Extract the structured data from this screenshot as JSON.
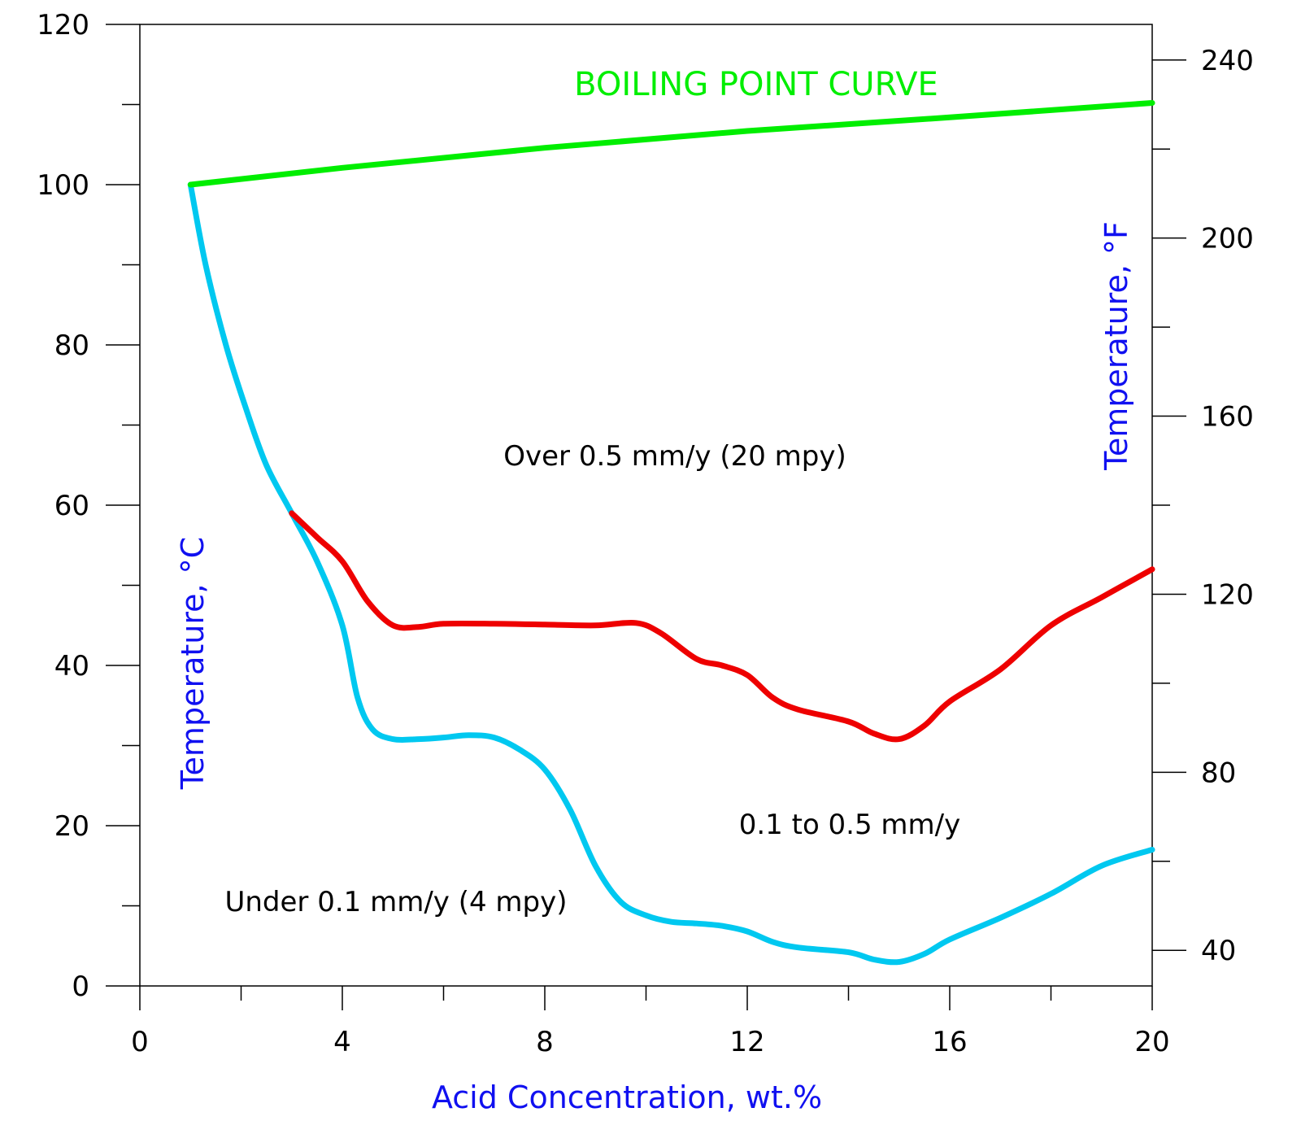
{
  "chart_data": {
    "type": "line",
    "xlabel": "Acid Concentration, wt.%",
    "ylabel": "Temperature, °C",
    "y2label": "Temperature, °F",
    "xlim": [
      0,
      20
    ],
    "ylim": [
      0,
      120
    ],
    "y2lim": [
      32,
      248
    ],
    "x_ticks": [
      0,
      4,
      8,
      12,
      16,
      20
    ],
    "x_minor_ticks": [
      2,
      6,
      10,
      14,
      18
    ],
    "y_ticks": [
      0,
      20,
      40,
      60,
      80,
      100,
      120
    ],
    "y_tick_labels": [
      "0",
      "20",
      "40",
      "60",
      "80",
      "100",
      "120"
    ],
    "y_minor_ticks": [
      10,
      30,
      50,
      70,
      90,
      110
    ],
    "y2_ticks": [
      40,
      80,
      120,
      160,
      200,
      240
    ],
    "y2_minor_ticks": [
      60,
      100,
      140,
      180,
      220
    ],
    "grid": false,
    "colors": {
      "boiling": "#00ee00",
      "iso_0_5": "#ee0000",
      "iso_0_1": "#00c8f0",
      "axis_title": "#1010f0",
      "axis": "#000000"
    },
    "series": [
      {
        "key": "boiling",
        "name": "BOILING POINT CURVE",
        "points": [
          [
            1,
            100
          ],
          [
            4,
            102.1
          ],
          [
            8,
            104.6
          ],
          [
            12,
            106.7
          ],
          [
            16,
            108.4
          ],
          [
            20,
            110.2
          ]
        ]
      },
      {
        "key": "iso_0_5",
        "points": [
          [
            3,
            59
          ],
          [
            3.5,
            56
          ],
          [
            4,
            53
          ],
          [
            4.5,
            48
          ],
          [
            5,
            45
          ],
          [
            5.5,
            44.8
          ],
          [
            6,
            45.2
          ],
          [
            7,
            45.2
          ],
          [
            8,
            45.1
          ],
          [
            9,
            45
          ],
          [
            9.8,
            45.3
          ],
          [
            10.3,
            44
          ],
          [
            11,
            40.8
          ],
          [
            11.5,
            40
          ],
          [
            12,
            38.8
          ],
          [
            12.5,
            36
          ],
          [
            13,
            34.5
          ],
          [
            14,
            33
          ],
          [
            14.5,
            31.5
          ],
          [
            15,
            30.8
          ],
          [
            15.5,
            32.5
          ],
          [
            16,
            35.5
          ],
          [
            17,
            39.5
          ],
          [
            18,
            45
          ],
          [
            19,
            48.5
          ],
          [
            20,
            52
          ]
        ]
      },
      {
        "key": "iso_0_1",
        "points": [
          [
            1,
            100
          ],
          [
            1.3,
            90
          ],
          [
            1.7,
            80
          ],
          [
            2.1,
            72
          ],
          [
            2.5,
            65
          ],
          [
            3,
            59
          ],
          [
            3.5,
            53
          ],
          [
            4,
            45
          ],
          [
            4.3,
            36
          ],
          [
            4.6,
            32
          ],
          [
            5,
            30.8
          ],
          [
            5.5,
            30.8
          ],
          [
            6,
            31
          ],
          [
            6.5,
            31.3
          ],
          [
            7,
            31
          ],
          [
            7.5,
            29.5
          ],
          [
            8,
            27
          ],
          [
            8.5,
            22
          ],
          [
            9,
            15
          ],
          [
            9.5,
            10.5
          ],
          [
            10,
            8.8
          ],
          [
            10.5,
            8
          ],
          [
            11,
            7.8
          ],
          [
            11.5,
            7.5
          ],
          [
            12,
            6.8
          ],
          [
            12.5,
            5.5
          ],
          [
            13,
            4.8
          ],
          [
            14,
            4.2
          ],
          [
            14.5,
            3.3
          ],
          [
            15,
            3
          ],
          [
            15.5,
            4
          ],
          [
            16,
            5.8
          ],
          [
            17,
            8.5
          ],
          [
            18,
            11.5
          ],
          [
            19,
            15
          ],
          [
            20,
            17
          ]
        ]
      }
    ],
    "annotations": {
      "boiling_label": "BOILING POINT CURVE",
      "over": "Over 0.5 mm/y (20 mpy)",
      "mid": "0.1 to 0.5 mm/y",
      "under": "Under 0.1 mm/y (4 mpy)"
    }
  }
}
